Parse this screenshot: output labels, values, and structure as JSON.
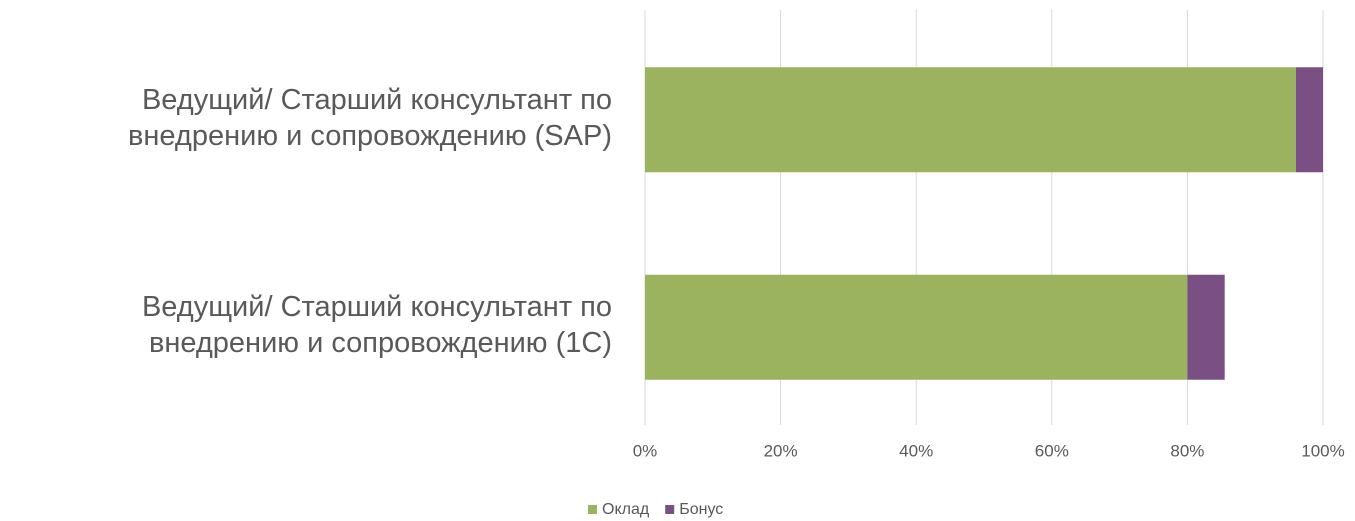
{
  "chart_data": {
    "type": "stacked_barh",
    "categories": [
      "Ведущий/ Старший консультант по\nвнедрению и сопровождению (SAP)",
      "Ведущий/ Старший консультант по\nвнедрению и сопровождению (1С)"
    ],
    "series": [
      {
        "name": "Оклад",
        "color": "#9bb35e",
        "values": [
          96,
          80
        ]
      },
      {
        "name": "Бонус",
        "color": "#7a5084",
        "values": [
          4,
          5.5
        ]
      }
    ],
    "xlim": [
      0,
      100
    ],
    "xticks": [
      {
        "value": 0,
        "label": "0%"
      },
      {
        "value": 20,
        "label": "20%"
      },
      {
        "value": 40,
        "label": "40%"
      },
      {
        "value": 60,
        "label": "60%"
      },
      {
        "value": 80,
        "label": "80%"
      },
      {
        "value": 100,
        "label": "100%"
      }
    ],
    "grid": true,
    "legend": "bottom"
  }
}
